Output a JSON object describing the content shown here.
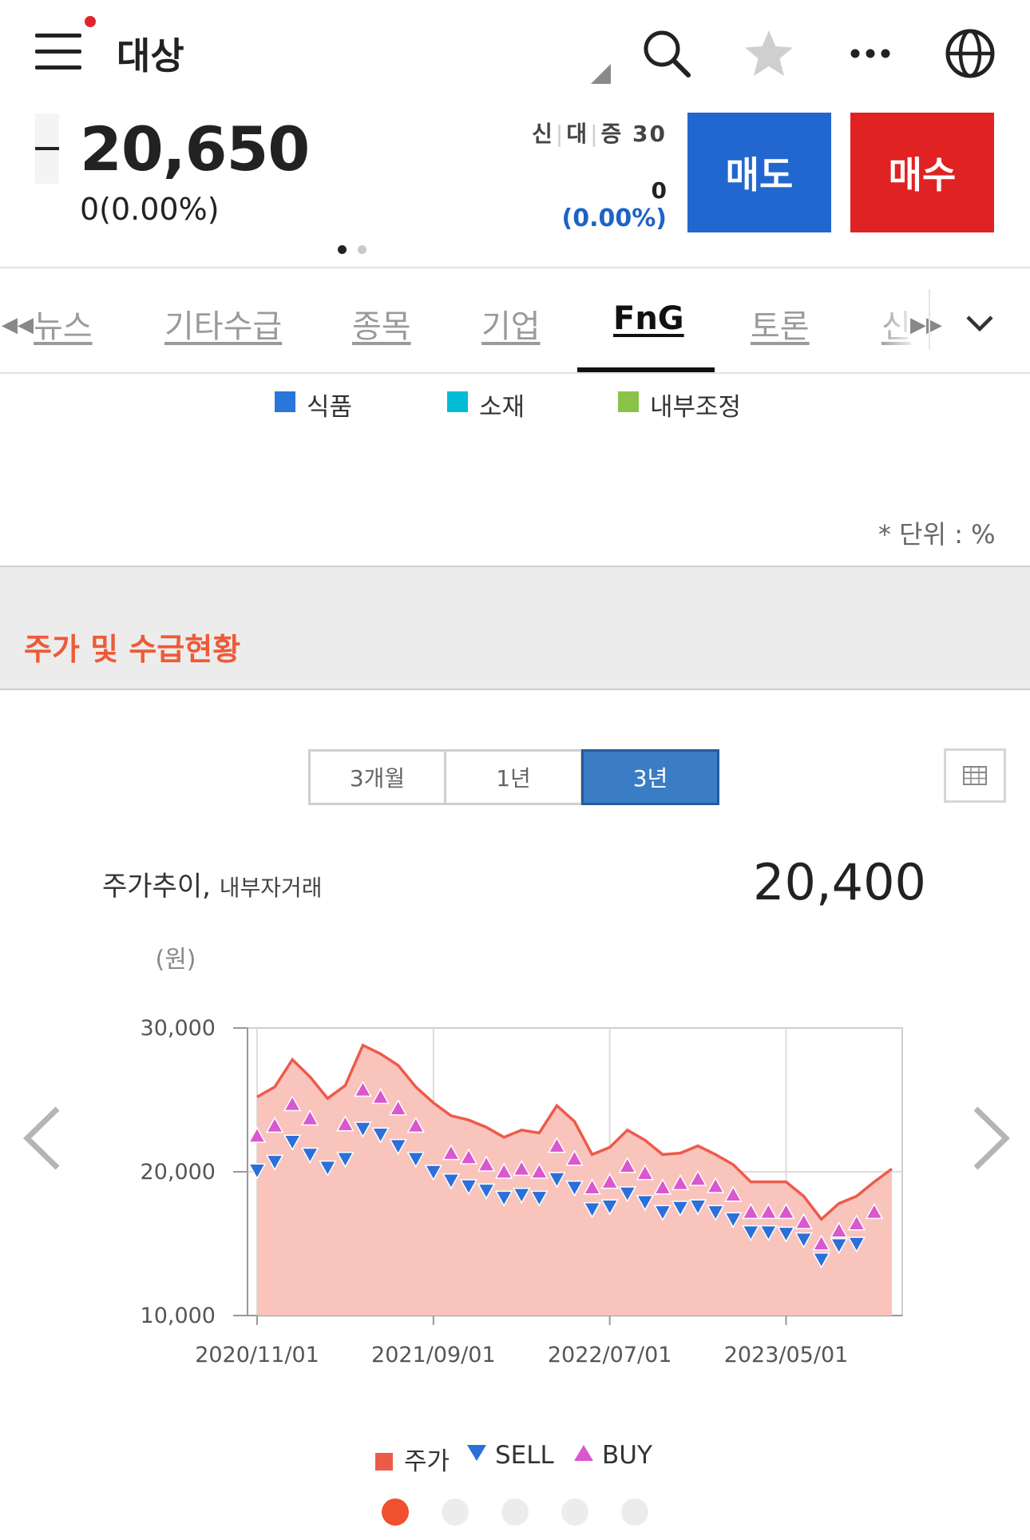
{
  "header": {
    "title": "대상",
    "icons": [
      "menu-icon",
      "search-icon",
      "star-icon",
      "more-icon",
      "globe-icon"
    ]
  },
  "quote": {
    "price": "20,650",
    "change": "0(0.00%)",
    "credit_labels": [
      "신",
      "대",
      "증"
    ],
    "credit_value": "30",
    "qty": "0",
    "pct": "(0.00%)"
  },
  "actions": {
    "sell_label": "매도",
    "buy_label": "매수"
  },
  "tabs": {
    "items": [
      "뉴스",
      "기타수급",
      "종목",
      "기업",
      "FnG",
      "토론",
      "신"
    ],
    "active": "FnG"
  },
  "sector_legend": [
    {
      "label": "식품",
      "color": "#2a76db"
    },
    {
      "label": "소재",
      "color": "#00bcd4"
    },
    {
      "label": "내부조정",
      "color": "#8bc34a"
    }
  ],
  "unit_label": "* 단위 : %",
  "section_title": "주가 및 수급현황",
  "periods": {
    "items": [
      "3개월",
      "1년",
      "3년"
    ],
    "active": "3년"
  },
  "chart_header": {
    "title": "주가추이,",
    "subtitle": "내부자거래",
    "value": "20,400"
  },
  "chart_data": {
    "type": "area",
    "ylabel": "(원)",
    "ylim": [
      10000,
      30000
    ],
    "yticks": [
      "10,000",
      "20,000",
      "30,000"
    ],
    "xticks": [
      "2020/11/01",
      "2021/09/01",
      "2022/07/01",
      "2023/05/01"
    ],
    "series": [
      {
        "name": "주가",
        "color": "#ee5a4a",
        "values": [
          25200,
          25900,
          27800,
          26600,
          25100,
          26000,
          28800,
          28200,
          27400,
          25900,
          24800,
          23900,
          23600,
          23100,
          22400,
          22900,
          22700,
          24600,
          23500,
          21200,
          21700,
          22900,
          22200,
          21200,
          21300,
          21800,
          21200,
          20500,
          19300,
          19300,
          19300,
          18300,
          16700,
          17800,
          18300,
          19300,
          20200
        ]
      },
      {
        "name": "SELL",
        "color": "#2b6fd9",
        "values": [
          20100,
          20700,
          22100,
          21200,
          20300,
          20900,
          23000,
          22600,
          21800,
          20900,
          20000,
          19400,
          19000,
          18700,
          18200,
          18400,
          18200,
          19500,
          18900,
          17400,
          17600,
          18500,
          17900,
          17200,
          17500,
          17600,
          17200,
          16700,
          15800,
          15800,
          15700,
          15300,
          13900,
          14900,
          15000
        ]
      },
      {
        "name": "BUY",
        "color": "#d957cf",
        "values": [
          22500,
          23200,
          24700,
          23700,
          null,
          23300,
          25700,
          25200,
          24400,
          23200,
          null,
          21300,
          21000,
          20500,
          20000,
          20200,
          20000,
          21800,
          20900,
          18900,
          19300,
          20400,
          19900,
          18900,
          19200,
          19500,
          19000,
          18400,
          17200,
          17200,
          17200,
          16500,
          15000,
          15900,
          16400,
          17200
        ]
      }
    ],
    "legend": [
      {
        "label": "주가",
        "marker": "square",
        "color": "#ee5a4a"
      },
      {
        "label": "SELL",
        "marker": "triangle-down",
        "color": "#2b6fd9"
      },
      {
        "label": "BUY",
        "marker": "triangle-up",
        "color": "#d957cf"
      }
    ]
  },
  "pager": {
    "count": 5,
    "active": 0
  }
}
